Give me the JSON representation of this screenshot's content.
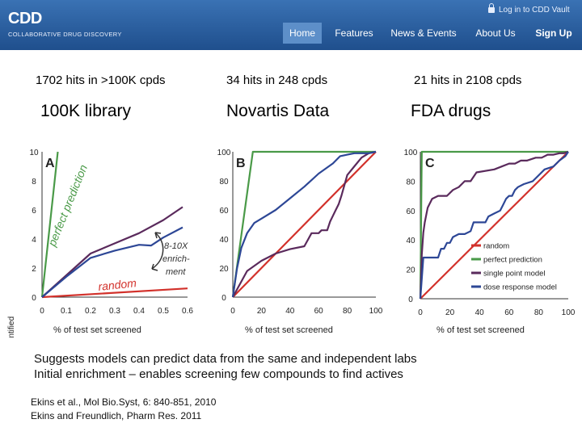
{
  "header": {
    "logo_text": "CDD",
    "tagline": "COLLABORATIVE DRUG DISCOVERY",
    "login": "Log in to CDD Vault",
    "nav": [
      "Home",
      "Features",
      "News & Events",
      "About Us",
      "Sign Up"
    ],
    "active_nav": "Home"
  },
  "columns": [
    {
      "hits": "1702 hits in >100K cpds",
      "library": "100K library"
    },
    {
      "hits": "34 hits in 248 cpds",
      "library": "Novartis Data"
    },
    {
      "hits": "21 hits in 2108 cpds",
      "library": "FDA drugs"
    }
  ],
  "notes": [
    "Suggests models can predict data from the same and independent labs",
    "Initial enrichment – enables screening few compounds to find actives"
  ],
  "references": [
    "Ekins et al., Mol Bio.Syst, 6: 840-851, 2010",
    "Ekins and Freundlich, Pharm Res. 2011"
  ],
  "chart_data": [
    {
      "type": "line",
      "panel": "A",
      "xlabel": "% of test set screened",
      "ylabel": "% of hits identified",
      "xlim": [
        0,
        0.6
      ],
      "ylim": [
        0,
        10
      ],
      "xticks": [
        "0",
        "0.1",
        "0.2",
        "0.3",
        "0.4",
        "0.5",
        "0.6"
      ],
      "yticks": [
        "0",
        "2",
        "4",
        "6",
        "8",
        "10"
      ],
      "series": [
        {
          "name": "perfect prediction",
          "color": "#4a9a48",
          "x": [
            0,
            0.065
          ],
          "y": [
            0,
            10
          ]
        },
        {
          "name": "random",
          "color": "#d2312b",
          "x": [
            0,
            0.6
          ],
          "y": [
            0,
            0.6
          ]
        },
        {
          "name": "single point model",
          "color": "#5a2a5c",
          "x": [
            0,
            0.1,
            0.2,
            0.3,
            0.4,
            0.5,
            0.58
          ],
          "y": [
            0,
            1.5,
            3.0,
            3.7,
            4.4,
            5.3,
            6.2
          ]
        },
        {
          "name": "dose response model",
          "color": "#2d4796",
          "x": [
            0,
            0.1,
            0.2,
            0.3,
            0.35,
            0.4,
            0.45,
            0.5,
            0.58
          ],
          "y": [
            0,
            1.4,
            2.7,
            3.2,
            3.4,
            3.6,
            3.55,
            4.1,
            4.8
          ]
        }
      ],
      "annotations": [
        "perfect prediction",
        "random",
        "8-10X",
        "enrich-",
        "ment"
      ]
    },
    {
      "type": "line",
      "panel": "B",
      "xlabel": "% of test set screened",
      "xlim": [
        0,
        100
      ],
      "ylim": [
        0,
        100
      ],
      "xticks": [
        "0",
        "20",
        "40",
        "60",
        "80",
        "100"
      ],
      "yticks": [
        "0",
        "20",
        "40",
        "60",
        "80",
        "100"
      ],
      "series": [
        {
          "name": "perfect prediction",
          "color": "#4a9a48",
          "x": [
            0,
            14,
            100
          ],
          "y": [
            0,
            100,
            100
          ]
        },
        {
          "name": "random",
          "color": "#d2312b",
          "x": [
            0,
            100
          ],
          "y": [
            0,
            100
          ]
        },
        {
          "name": "single point model",
          "color": "#5a2a5c",
          "x": [
            0,
            10,
            20,
            30,
            40,
            50,
            55,
            60,
            62,
            66,
            68,
            70,
            72,
            74,
            76,
            80,
            85,
            90,
            95,
            100
          ],
          "y": [
            0,
            18,
            25,
            30,
            33,
            35,
            44,
            44,
            46,
            46,
            52,
            56,
            60,
            64,
            70,
            84,
            90,
            96,
            99,
            100
          ]
        },
        {
          "name": "dose response model",
          "color": "#2d4796",
          "x": [
            0,
            3,
            6,
            10,
            15,
            20,
            30,
            40,
            50,
            60,
            70,
            75,
            80,
            85,
            90,
            95,
            100
          ],
          "y": [
            0,
            20,
            34,
            44,
            51,
            54,
            60,
            68,
            76,
            85,
            92,
            97,
            98,
            99,
            99,
            99,
            100
          ]
        }
      ]
    },
    {
      "type": "line",
      "panel": "C",
      "xlabel": "% of test set screened",
      "xlim": [
        0,
        100
      ],
      "ylim": [
        0,
        100
      ],
      "xticks": [
        "0",
        "20",
        "40",
        "60",
        "80",
        "100"
      ],
      "yticks": [
        "0",
        "20",
        "40",
        "60",
        "80",
        "100"
      ],
      "series": [
        {
          "name": "random",
          "color": "#d2312b",
          "x": [
            0,
            100
          ],
          "y": [
            0,
            100
          ]
        },
        {
          "name": "perfect prediction",
          "color": "#4a9a48",
          "x": [
            0,
            1,
            100
          ],
          "y": [
            0,
            100,
            100
          ]
        },
        {
          "name": "single point model",
          "color": "#5a2a5c",
          "x": [
            0,
            1,
            2,
            3,
            4,
            5,
            8,
            12,
            18,
            22,
            26,
            30,
            34,
            38,
            50,
            55,
            60,
            64,
            68,
            72,
            78,
            82,
            86,
            90,
            94,
            97,
            100
          ],
          "y": [
            0,
            30,
            45,
            52,
            57,
            62,
            68,
            70,
            70,
            74,
            76,
            80,
            80,
            86,
            88,
            90,
            92,
            92,
            94,
            94,
            96,
            96,
            98,
            98,
            99,
            99,
            100
          ]
        },
        {
          "name": "dose response model",
          "color": "#2d4796",
          "x": [
            0,
            2,
            12,
            14,
            16,
            18,
            20,
            22,
            26,
            30,
            34,
            36,
            44,
            46,
            50,
            54,
            56,
            58,
            60,
            62,
            64,
            66,
            70,
            76,
            80,
            84,
            90,
            94,
            98,
            100
          ],
          "y": [
            0,
            28,
            28,
            34,
            34,
            38,
            38,
            42,
            44,
            44,
            46,
            52,
            52,
            56,
            58,
            60,
            64,
            68,
            70,
            70,
            74,
            76,
            78,
            80,
            84,
            88,
            90,
            94,
            97,
            100
          ]
        }
      ],
      "legend": [
        "random",
        "perfect prediction",
        "single point model",
        "dose response model"
      ]
    }
  ]
}
